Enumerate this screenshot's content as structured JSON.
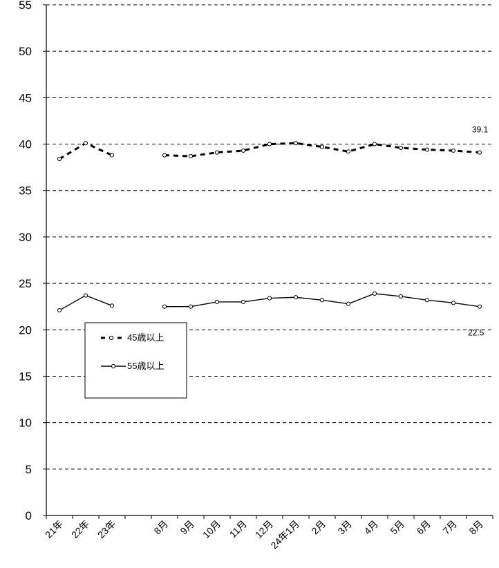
{
  "chart_data": {
    "type": "line",
    "categories": [
      "21年",
      "22年",
      "23年",
      "",
      "8月",
      "9月",
      "10月",
      "11月",
      "12月",
      "24年1月",
      "2月",
      "3月",
      "4月",
      "5月",
      "6月",
      "7月",
      "8月"
    ],
    "series": [
      {
        "name": "45歳以上",
        "values": [
          38.4,
          40.1,
          38.8,
          null,
          38.8,
          38.7,
          39.1,
          39.3,
          40.0,
          40.1,
          39.7,
          39.2,
          40.0,
          39.6,
          39.4,
          39.3,
          39.1
        ],
        "style": "dashed"
      },
      {
        "name": "55歳以上",
        "values": [
          22.1,
          23.7,
          22.6,
          null,
          22.5,
          22.5,
          23.0,
          23.0,
          23.4,
          23.5,
          23.2,
          22.8,
          23.9,
          23.6,
          23.2,
          22.9,
          22.5
        ],
        "style": "solid"
      }
    ],
    "annotations": [
      {
        "text": "39.1",
        "series": "45歳以上"
      },
      {
        "text": "22.5",
        "series": "55歳以上"
      }
    ],
    "ylim": [
      0,
      55
    ],
    "yticks": [
      "0",
      "5",
      "10",
      "15",
      "20",
      "25",
      "30",
      "35",
      "40",
      "45",
      "50",
      "55"
    ],
    "grid": true,
    "legend_position": "left-middle",
    "title": "",
    "xlabel": "",
    "ylabel": ""
  }
}
